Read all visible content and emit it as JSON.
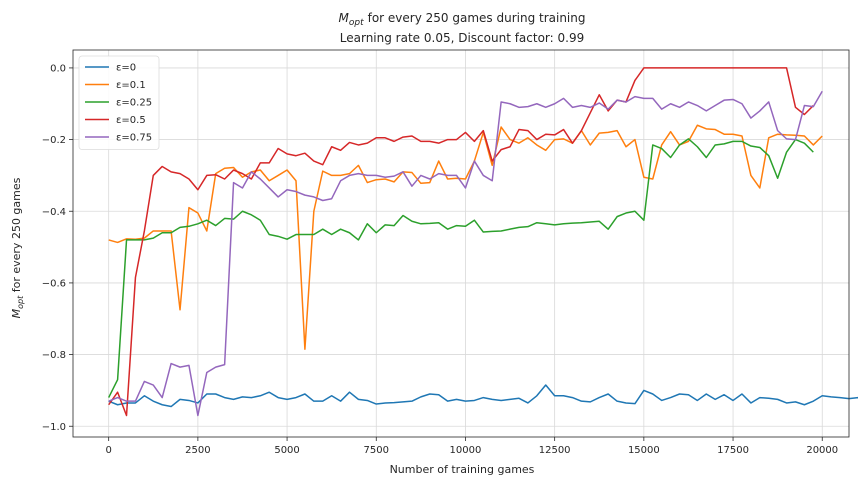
{
  "chart_data": {
    "type": "line",
    "title_main": "for every 250 games during training",
    "title_math_base": "M",
    "title_math_sub": "opt",
    "subtitle": "Learning rate 0.05, Discount factor: 0.99",
    "xlabel": "Number of training games",
    "ylabel_base": "M",
    "ylabel_sub": "opt",
    "ylabel_rest": " for every 250 games",
    "xlim": [
      -1000,
      20750
    ],
    "ylim": [
      -1.03,
      0.05
    ],
    "xticks": [
      0,
      2500,
      5000,
      7500,
      10000,
      12500,
      15000,
      17500,
      20000
    ],
    "xtick_labels": [
      "0",
      "2500",
      "5000",
      "7500",
      "10000",
      "12500",
      "15000",
      "17500",
      "20000"
    ],
    "yticks": [
      -1.0,
      -0.8,
      -0.6,
      -0.4,
      -0.2,
      0.0
    ],
    "ytick_labels": [
      "−1.0",
      "−0.8",
      "−0.6",
      "−0.4",
      "−0.2",
      "0.0"
    ],
    "grid": true,
    "legend_position": "top-left",
    "x_start": 0,
    "x_step": 250,
    "series": [
      {
        "name": "ε=0",
        "color": "#1f77b4",
        "values": [
          -0.93,
          -0.94,
          -0.935,
          -0.935,
          -0.915,
          -0.93,
          -0.94,
          -0.945,
          -0.925,
          -0.928,
          -0.935,
          -0.91,
          -0.91,
          -0.92,
          -0.925,
          -0.918,
          -0.92,
          -0.915,
          -0.905,
          -0.92,
          -0.925,
          -0.92,
          -0.91,
          -0.93,
          -0.93,
          -0.915,
          -0.93,
          -0.905,
          -0.925,
          -0.928,
          -0.938,
          -0.935,
          -0.934,
          -0.932,
          -0.93,
          -0.918,
          -0.91,
          -0.912,
          -0.93,
          -0.925,
          -0.93,
          -0.928,
          -0.92,
          -0.925,
          -0.928,
          -0.925,
          -0.922,
          -0.935,
          -0.915,
          -0.885,
          -0.915,
          -0.915,
          -0.92,
          -0.93,
          -0.932,
          -0.92,
          -0.91,
          -0.93,
          -0.935,
          -0.937,
          -0.9,
          -0.91,
          -0.928,
          -0.92,
          -0.91,
          -0.912,
          -0.928,
          -0.91,
          -0.925,
          -0.912,
          -0.928,
          -0.91,
          -0.935,
          -0.92,
          -0.922,
          -0.925,
          -0.935,
          -0.932,
          -0.94,
          -0.93,
          -0.915,
          -0.918,
          -0.92,
          -0.923,
          -0.92,
          -0.94,
          -0.905,
          -0.92
        ]
      },
      {
        "name": "ε=0.1",
        "color": "#ff7f0e",
        "values": [
          -0.48,
          -0.487,
          -0.477,
          -0.478,
          -0.475,
          -0.455,
          -0.455,
          -0.455,
          -0.675,
          -0.39,
          -0.405,
          -0.455,
          -0.295,
          -0.28,
          -0.278,
          -0.305,
          -0.29,
          -0.285,
          -0.315,
          -0.3,
          -0.285,
          -0.315,
          -0.785,
          -0.4,
          -0.288,
          -0.3,
          -0.3,
          -0.295,
          -0.272,
          -0.32,
          -0.312,
          -0.31,
          -0.318,
          -0.29,
          -0.292,
          -0.322,
          -0.32,
          -0.26,
          -0.31,
          -0.308,
          -0.31,
          -0.26,
          -0.18,
          -0.272,
          -0.165,
          -0.2,
          -0.21,
          -0.195,
          -0.215,
          -0.23,
          -0.2,
          -0.198,
          -0.21,
          -0.175,
          -0.215,
          -0.182,
          -0.18,
          -0.175,
          -0.22,
          -0.2,
          -0.305,
          -0.31,
          -0.215,
          -0.178,
          -0.215,
          -0.205,
          -0.16,
          -0.17,
          -0.172,
          -0.185,
          -0.185,
          -0.19,
          -0.3,
          -0.335,
          -0.195,
          -0.185,
          -0.187,
          -0.188,
          -0.19,
          -0.215,
          -0.19
        ]
      },
      {
        "name": "ε=0.25",
        "color": "#2ca02c",
        "values": [
          -0.92,
          -0.87,
          -0.48,
          -0.48,
          -0.48,
          -0.475,
          -0.46,
          -0.46,
          -0.445,
          -0.442,
          -0.435,
          -0.425,
          -0.44,
          -0.42,
          -0.422,
          -0.4,
          -0.41,
          -0.425,
          -0.465,
          -0.47,
          -0.478,
          -0.465,
          -0.465,
          -0.465,
          -0.45,
          -0.465,
          -0.45,
          -0.46,
          -0.48,
          -0.435,
          -0.46,
          -0.438,
          -0.44,
          -0.412,
          -0.428,
          -0.435,
          -0.434,
          -0.432,
          -0.45,
          -0.44,
          -0.442,
          -0.425,
          -0.458,
          -0.456,
          -0.455,
          -0.45,
          -0.445,
          -0.443,
          -0.432,
          -0.435,
          -0.438,
          -0.435,
          -0.433,
          -0.432,
          -0.43,
          -0.428,
          -0.45,
          -0.415,
          -0.405,
          -0.4,
          -0.425,
          -0.215,
          -0.225,
          -0.25,
          -0.215,
          -0.198,
          -0.22,
          -0.25,
          -0.215,
          -0.212,
          -0.205,
          -0.205,
          -0.218,
          -0.222,
          -0.245,
          -0.308,
          -0.235,
          -0.2,
          -0.21,
          -0.235
        ]
      },
      {
        "name": "ε=0.5",
        "color": "#d62728",
        "values": [
          -0.94,
          -0.905,
          -0.97,
          -0.585,
          -0.455,
          -0.3,
          -0.275,
          -0.29,
          -0.295,
          -0.31,
          -0.34,
          -0.3,
          -0.298,
          -0.31,
          -0.285,
          -0.295,
          -0.31,
          -0.265,
          -0.265,
          -0.225,
          -0.24,
          -0.245,
          -0.238,
          -0.26,
          -0.27,
          -0.22,
          -0.23,
          -0.208,
          -0.215,
          -0.21,
          -0.195,
          -0.195,
          -0.205,
          -0.193,
          -0.19,
          -0.205,
          -0.205,
          -0.21,
          -0.2,
          -0.2,
          -0.18,
          -0.205,
          -0.175,
          -0.26,
          -0.228,
          -0.22,
          -0.172,
          -0.175,
          -0.2,
          -0.185,
          -0.187,
          -0.172,
          -0.21,
          -0.175,
          -0.125,
          -0.075,
          -0.12,
          -0.09,
          -0.095,
          -0.035,
          0.0,
          0.0,
          0.0,
          0.0,
          0.0,
          0.0,
          0.0,
          0.0,
          0.0,
          0.0,
          0.0,
          0.0,
          0.0,
          0.0,
          0.0,
          0.0,
          0.0,
          -0.11,
          -0.13,
          -0.105
        ]
      },
      {
        "name": "ε=0.75",
        "color": "#9467bd",
        "values": [
          -0.93,
          -0.92,
          -0.93,
          -0.93,
          -0.875,
          -0.885,
          -0.92,
          -0.825,
          -0.835,
          -0.83,
          -0.97,
          -0.85,
          -0.835,
          -0.828,
          -0.32,
          -0.335,
          -0.29,
          -0.31,
          -0.335,
          -0.36,
          -0.34,
          -0.345,
          -0.355,
          -0.36,
          -0.37,
          -0.365,
          -0.315,
          -0.3,
          -0.295,
          -0.3,
          -0.3,
          -0.305,
          -0.302,
          -0.29,
          -0.33,
          -0.3,
          -0.31,
          -0.295,
          -0.3,
          -0.3,
          -0.335,
          -0.26,
          -0.3,
          -0.315,
          -0.095,
          -0.1,
          -0.11,
          -0.108,
          -0.1,
          -0.11,
          -0.1,
          -0.085,
          -0.11,
          -0.105,
          -0.11,
          -0.098,
          -0.115,
          -0.09,
          -0.095,
          -0.08,
          -0.085,
          -0.085,
          -0.115,
          -0.1,
          -0.11,
          -0.095,
          -0.105,
          -0.12,
          -0.105,
          -0.09,
          -0.088,
          -0.1,
          -0.14,
          -0.12,
          -0.095,
          -0.175,
          -0.198,
          -0.2,
          -0.105,
          -0.108,
          -0.065
        ]
      }
    ]
  }
}
